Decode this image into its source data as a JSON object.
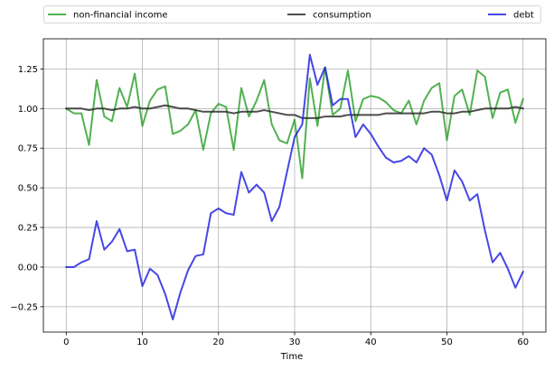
{
  "chart_data": {
    "type": "line",
    "title": "",
    "xlabel": "Time",
    "ylabel": "",
    "xlim": [
      -3,
      63
    ],
    "ylim": [
      -0.41,
      1.44
    ],
    "x_ticks": [
      0,
      10,
      20,
      30,
      40,
      50,
      60
    ],
    "y_ticks": [
      -0.25,
      0.0,
      0.25,
      0.5,
      0.75,
      1.0,
      1.25
    ],
    "x_tick_labels": [
      "0",
      "10",
      "20",
      "30",
      "40",
      "50",
      "60"
    ],
    "y_tick_labels": [
      "−0.25",
      "0.00",
      "0.25",
      "0.50",
      "0.75",
      "1.00",
      "1.25"
    ],
    "grid": true,
    "legend_position": "top, outside plot area",
    "x": [
      0,
      1,
      2,
      3,
      4,
      5,
      6,
      7,
      8,
      9,
      10,
      11,
      12,
      13,
      14,
      15,
      16,
      17,
      18,
      19,
      20,
      21,
      22,
      23,
      24,
      25,
      26,
      27,
      28,
      29,
      30,
      31,
      32,
      33,
      34,
      35,
      36,
      37,
      38,
      39,
      40,
      41,
      42,
      43,
      44,
      45,
      46,
      47,
      48,
      49,
      50,
      51,
      52,
      53,
      54,
      55,
      56,
      57,
      58,
      59,
      60
    ],
    "series": [
      {
        "name": "non-financial income",
        "color": "#2ca02c",
        "values": [
          1.0,
          0.97,
          0.97,
          0.77,
          1.18,
          0.95,
          0.92,
          1.13,
          1.01,
          1.22,
          0.89,
          1.05,
          1.12,
          1.14,
          0.84,
          0.86,
          0.9,
          0.99,
          0.74,
          0.97,
          1.03,
          1.01,
          0.74,
          1.13,
          0.95,
          1.05,
          1.18,
          0.9,
          0.8,
          0.78,
          0.93,
          0.56,
          1.19,
          0.89,
          1.26,
          0.96,
          1.0,
          1.24,
          0.92,
          1.06,
          1.08,
          1.07,
          1.04,
          0.99,
          0.97,
          1.05,
          0.9,
          1.05,
          1.13,
          1.16,
          0.8,
          1.08,
          1.12,
          0.96,
          1.24,
          1.2,
          0.94,
          1.1,
          1.12,
          0.91,
          1.06
        ]
      },
      {
        "name": "consumption",
        "color": "#262626",
        "values": [
          1.0,
          1.0,
          1.0,
          0.99,
          1.0,
          1.0,
          0.99,
          1.0,
          1.0,
          1.01,
          1.0,
          1.0,
          1.01,
          1.02,
          1.01,
          1.0,
          1.0,
          0.99,
          0.98,
          0.98,
          0.98,
          0.98,
          0.97,
          0.98,
          0.98,
          0.98,
          0.99,
          0.98,
          0.97,
          0.96,
          0.96,
          0.94,
          0.94,
          0.94,
          0.95,
          0.95,
          0.95,
          0.96,
          0.96,
          0.96,
          0.96,
          0.96,
          0.97,
          0.97,
          0.97,
          0.97,
          0.97,
          0.97,
          0.98,
          0.98,
          0.97,
          0.97,
          0.98,
          0.98,
          0.99,
          1.0,
          1.0,
          1.0,
          1.0,
          1.01,
          1.0
        ]
      },
      {
        "name": "debt",
        "color": "#1f1fe0",
        "values": [
          0.0,
          0.0,
          0.03,
          0.05,
          0.29,
          0.11,
          0.16,
          0.24,
          0.1,
          0.11,
          -0.12,
          -0.01,
          -0.05,
          -0.17,
          -0.33,
          -0.16,
          -0.02,
          0.07,
          0.08,
          0.34,
          0.37,
          0.34,
          0.33,
          0.6,
          0.47,
          0.52,
          0.47,
          0.29,
          0.38,
          0.6,
          0.82,
          0.9,
          1.34,
          1.15,
          1.26,
          1.02,
          1.06,
          1.06,
          0.82,
          0.9,
          0.84,
          0.76,
          0.69,
          0.66,
          0.67,
          0.7,
          0.66,
          0.75,
          0.71,
          0.58,
          0.42,
          0.61,
          0.54,
          0.42,
          0.46,
          0.23,
          0.03,
          0.09,
          -0.01,
          -0.13,
          -0.03
        ]
      }
    ]
  }
}
